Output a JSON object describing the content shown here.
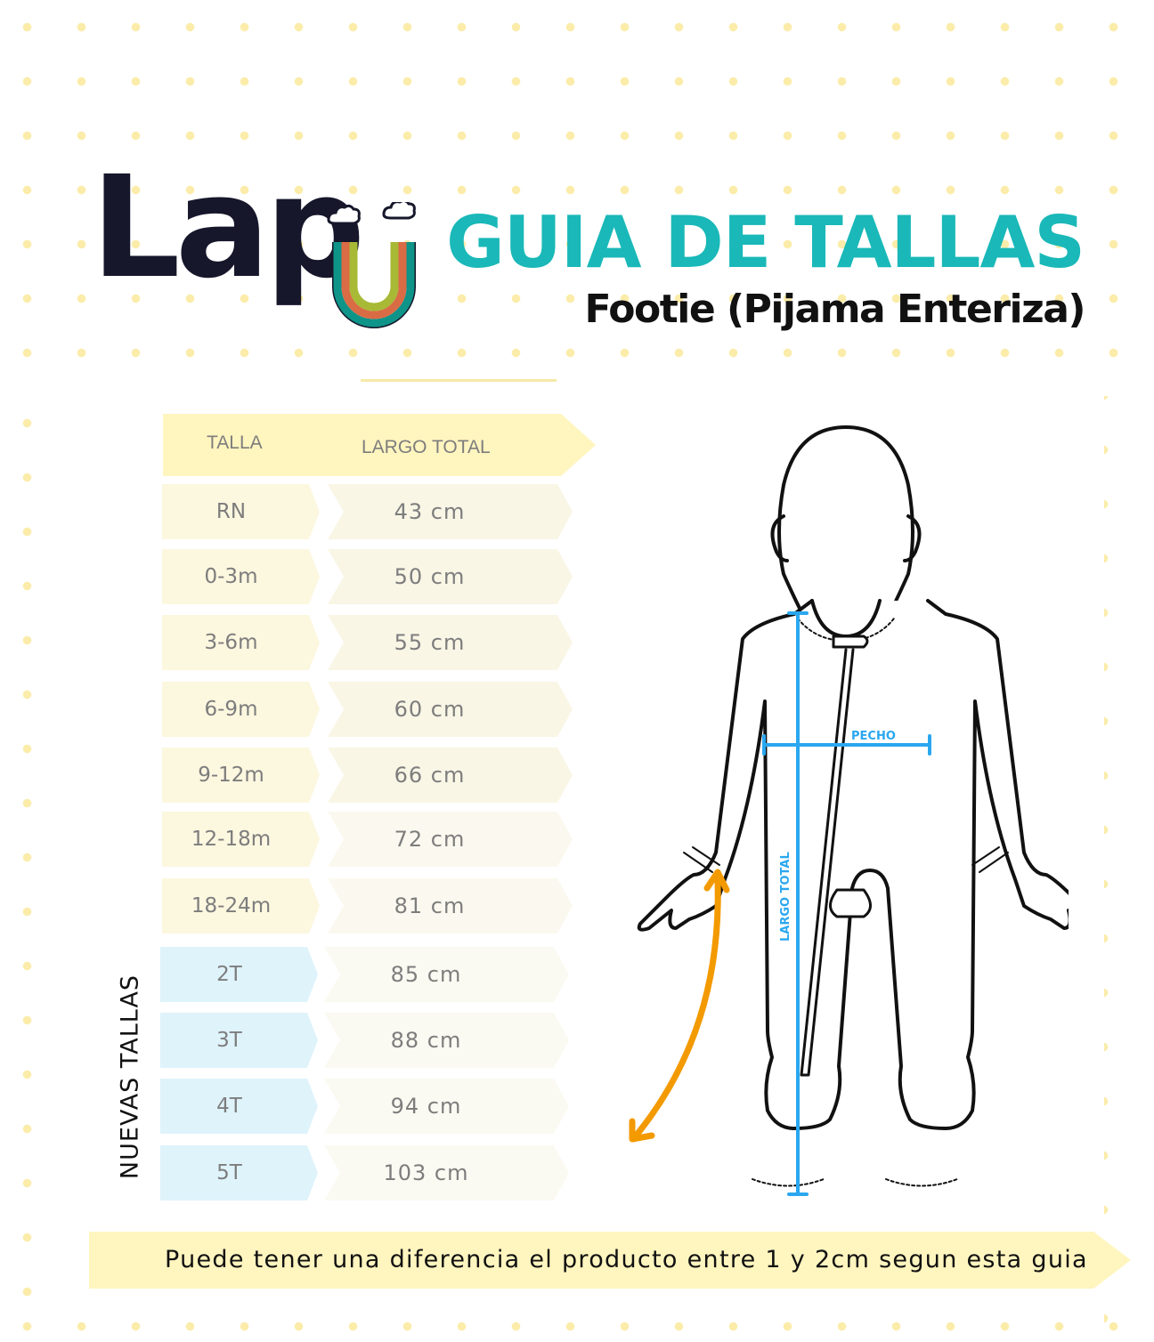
{
  "brand": {
    "logo_text": "Lapu"
  },
  "header": {
    "title": "GUIA DE TALLAS",
    "subtitle": "Footie (Pijama Enteriza)"
  },
  "table": {
    "columns": [
      "TALLA",
      "LARGO TOTAL"
    ],
    "rows": [
      {
        "size": "RN",
        "length": "43 cm"
      },
      {
        "size": "0-3m",
        "length": "50 cm"
      },
      {
        "size": "3-6m",
        "length": "55 cm"
      },
      {
        "size": "6-9m",
        "length": "60 cm"
      },
      {
        "size": "9-12m",
        "length": "66 cm"
      },
      {
        "size": "12-18m",
        "length": "72 cm"
      },
      {
        "size": "18-24m",
        "length": "81 cm"
      },
      {
        "size": "2T",
        "length": "85 cm"
      },
      {
        "size": "3T",
        "length": "88 cm"
      },
      {
        "size": "4T",
        "length": "94 cm"
      },
      {
        "size": "5T",
        "length": "103 cm"
      }
    ],
    "new_sizes_label": "NUEVAS TALLAS"
  },
  "diagram": {
    "chest_label": "PECHO",
    "length_label": "LARGO TOTAL",
    "measure_color": "#2aa7f0",
    "arrow_color": "#f39a00"
  },
  "footer": {
    "note": "Puede tener una diferencia el producto entre 1 y 2cm segun esta guia"
  },
  "colors": {
    "title": "#1ab8b8",
    "header_fill": "#fff5bf",
    "new_size_fill": "#dff3fb",
    "dots": "#fbecaa"
  }
}
